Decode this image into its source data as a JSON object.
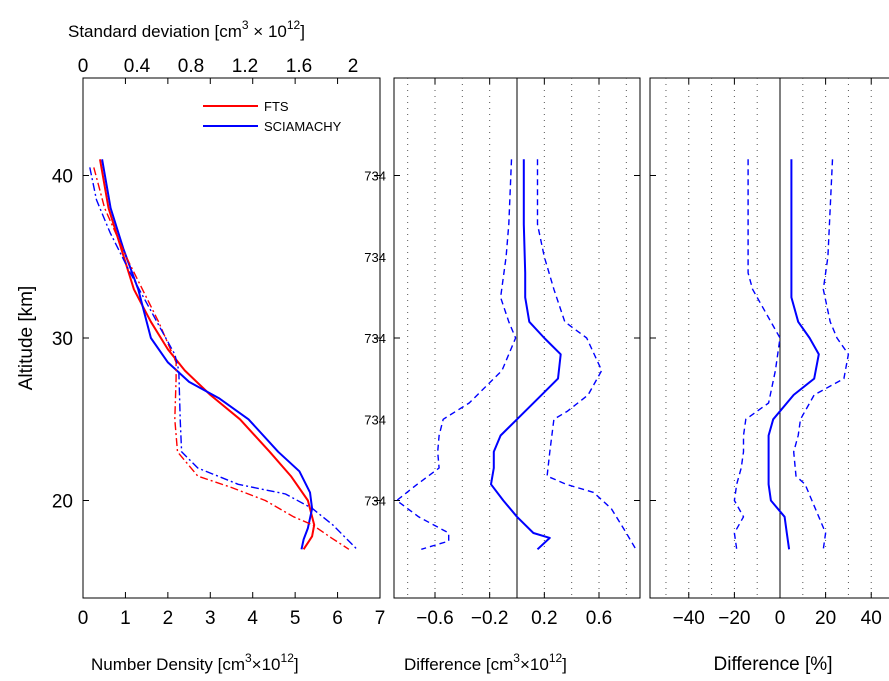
{
  "chart_data": [
    {
      "type": "line",
      "panel": "profiles",
      "xlabel_main": "Number Density [cm",
      "xlabel_sup": "3",
      "xlabel_mid": "×10",
      "xlabel_sup2": "12",
      "xlabel_end": "]",
      "ylabel": "Altitude [km]",
      "top_axis_label_main": "Standard deviation  [cm",
      "top_axis_label_sup": "3",
      "top_axis_label_mid": " × 10",
      "top_axis_label_sup2": "12",
      "top_axis_label_end": "]",
      "xlim": [
        0,
        7
      ],
      "ylim": [
        14,
        46
      ],
      "xticks": [
        0,
        1,
        2,
        3,
        4,
        5,
        6,
        7
      ],
      "yticks": [
        20,
        30,
        40
      ],
      "top_xlim": [
        0,
        2.2
      ],
      "top_xticks": [
        "0",
        "0.4",
        "0.8",
        "1.2",
        "1.6",
        "2"
      ],
      "top_xtick_values": [
        0,
        0.4,
        0.8,
        1.2,
        1.6,
        2.0
      ],
      "legend": {
        "position": "top-right",
        "entries": [
          "FTS",
          "SCIAMACHY"
        ]
      },
      "series": [
        {
          "name": "FTS",
          "color": "#ff0000",
          "style": "solid",
          "x": [
            0.4,
            0.6,
            0.9,
            1.2,
            1.6,
            2.0,
            2.4,
            3.0,
            3.7,
            4.4,
            4.9,
            5.3,
            5.45,
            5.4,
            5.3,
            5.2
          ],
          "y": [
            41,
            38,
            35.5,
            33,
            31,
            29.3,
            28,
            26.5,
            25,
            23,
            21.5,
            20,
            18.5,
            17.8,
            17.4,
            17
          ]
        },
        {
          "name": "SCIAMACHY",
          "color": "#0000ff",
          "style": "solid",
          "x": [
            0.45,
            0.65,
            0.95,
            1.3,
            1.6,
            2.0,
            2.5,
            3.2,
            3.9,
            4.6,
            5.1,
            5.35,
            5.4,
            5.3,
            5.2,
            5.15
          ],
          "y": [
            41,
            38,
            35.5,
            33,
            30,
            28.5,
            27.3,
            26.3,
            25,
            23,
            21.8,
            20.5,
            19.5,
            18.3,
            17.6,
            17
          ]
        },
        {
          "name": "",
          "color": "#ff0000",
          "style": "dashdot",
          "axis": "top",
          "x": [
            0.08,
            0.16,
            0.32,
            0.56,
            0.69,
            0.69,
            0.68,
            0.7,
            0.85,
            1.1,
            1.35,
            1.56,
            1.7,
            1.84,
            1.97
          ],
          "y": [
            40.5,
            38,
            35,
            31,
            28.5,
            27.5,
            25,
            23,
            21.5,
            20.8,
            20,
            19,
            18.5,
            17.7,
            17
          ]
        },
        {
          "name": "",
          "color": "#0000ff",
          "style": "dashdot",
          "axis": "top",
          "x": [
            0.05,
            0.1,
            0.2,
            0.35,
            0.58,
            0.68,
            0.71,
            0.72,
            0.73,
            0.85,
            1.15,
            1.5,
            1.7,
            1.85,
            2.03
          ],
          "y": [
            40.5,
            38.5,
            36.5,
            34,
            30.5,
            29,
            28,
            25,
            23,
            22,
            21,
            20.4,
            19.5,
            18.5,
            17
          ]
        }
      ]
    },
    {
      "type": "line",
      "panel": "absolute-difference",
      "xlabel_main": "Difference  [cm",
      "xlabel_sup": "3",
      "xlabel_mid": "×10",
      "xlabel_sup2": "12",
      "xlabel_end": "]",
      "xlim": [
        -0.9,
        0.9
      ],
      "ylim": [
        14,
        46
      ],
      "xticks": [
        -0.6,
        -0.2,
        0.2,
        0.6
      ],
      "xtick_labels": [
        "−0.6",
        "−0.2",
        "0.2",
        "0.6"
      ],
      "grid_x": [
        -0.8,
        -0.6,
        -0.4,
        -0.2,
        0,
        0.2,
        0.4,
        0.6,
        0.8
      ],
      "row_labels": [
        {
          "text": "734",
          "y": 40
        },
        {
          "text": "734",
          "y": 35
        },
        {
          "text": "734",
          "y": 30
        },
        {
          "text": "734",
          "y": 25
        },
        {
          "text": "734",
          "y": 20
        }
      ],
      "series": [
        {
          "name": "",
          "color": "#0000ff",
          "style": "solid",
          "x": [
            0.05,
            0.05,
            0.06,
            0.06,
            0.09,
            0.2,
            0.32,
            0.3,
            0.18,
            0.0,
            -0.12,
            -0.17,
            -0.17,
            -0.19,
            -0.1,
            0.0,
            0.12,
            0.24,
            0.15
          ],
          "y": [
            41,
            37,
            34,
            32.5,
            31,
            30,
            29,
            27.5,
            26.5,
            25,
            24,
            23,
            22,
            21,
            20,
            19,
            18,
            17.7,
            17
          ]
        },
        {
          "name": "",
          "color": "#0000ff",
          "style": "dashed",
          "x": [
            -0.04,
            -0.06,
            -0.08,
            -0.12,
            -0.06,
            -0.01,
            -0.11,
            -0.35,
            -0.54,
            -0.57,
            -0.58,
            -0.57,
            -0.73,
            -0.88,
            -0.72,
            -0.5,
            -0.5,
            -0.7
          ],
          "y": [
            41,
            37,
            35,
            32.5,
            31,
            30,
            28,
            26,
            25,
            24,
            23,
            22,
            21,
            20,
            19,
            18,
            17.5,
            17
          ]
        },
        {
          "name": "",
          "color": "#0000ff",
          "style": "dashed",
          "x": [
            0.15,
            0.15,
            0.2,
            0.27,
            0.35,
            0.51,
            0.62,
            0.52,
            0.37,
            0.27,
            0.24,
            0.22,
            0.36,
            0.56,
            0.69,
            0.8,
            0.87
          ],
          "y": [
            41,
            37,
            35,
            33,
            31,
            30,
            28,
            26.5,
            25.5,
            25,
            23,
            21.5,
            21,
            20.5,
            19.5,
            18,
            17
          ]
        }
      ]
    },
    {
      "type": "line",
      "panel": "percent-difference",
      "xlabel": "Difference [%]",
      "xlim": [
        -57,
        57
      ],
      "ylim": [
        14,
        46
      ],
      "xticks": [
        -40,
        -20,
        0,
        20,
        40
      ],
      "xtick_labels": [
        "−40",
        "−20",
        "0",
        "20",
        "40"
      ],
      "grid_x": [
        -50,
        -40,
        -30,
        -20,
        -10,
        0,
        10,
        20,
        30,
        40,
        50
      ],
      "series": [
        {
          "name": "",
          "color": "#0000ff",
          "style": "solid",
          "x": [
            5,
            5,
            5,
            5,
            8,
            13,
            17,
            15,
            6,
            -3,
            -5,
            -5,
            -5,
            -5,
            -4,
            2,
            3,
            4
          ],
          "y": [
            41,
            37,
            34,
            32.5,
            31,
            30,
            29,
            27.5,
            26.5,
            25,
            24,
            23,
            22,
            21,
            20,
            19,
            18,
            17
          ]
        },
        {
          "name": "",
          "color": "#0000ff",
          "style": "dashed",
          "x": [
            -14,
            -14,
            -14,
            -12,
            -4,
            0,
            -2,
            -5,
            -15,
            -16,
            -16,
            -17,
            -19,
            -20,
            -16,
            -20,
            -19
          ],
          "y": [
            41,
            37,
            34,
            33,
            31,
            30,
            28,
            26,
            25,
            24,
            23,
            22,
            21,
            20,
            19,
            18,
            17
          ]
        },
        {
          "name": "",
          "color": "#0000ff",
          "style": "dashed",
          "x": [
            23,
            22,
            21,
            19,
            22,
            25,
            30,
            28,
            15,
            9,
            8,
            6,
            7,
            11,
            14,
            17,
            20,
            19
          ],
          "y": [
            41,
            38,
            35,
            33,
            31,
            30,
            29,
            27.5,
            26.5,
            25,
            24,
            23,
            21.5,
            21,
            20,
            19,
            18,
            17
          ]
        }
      ]
    }
  ]
}
